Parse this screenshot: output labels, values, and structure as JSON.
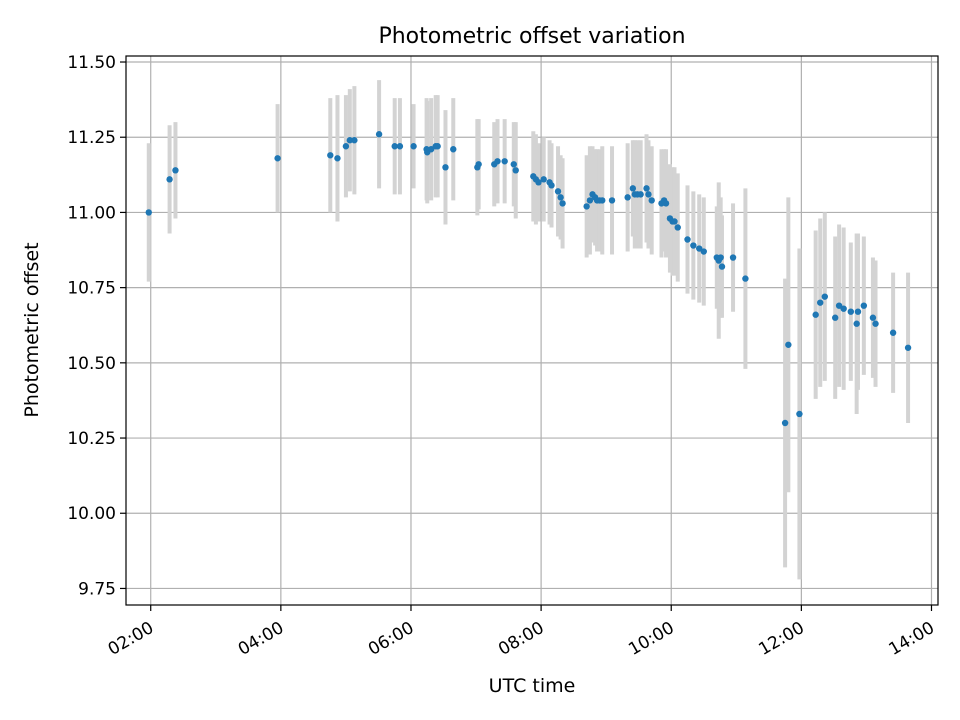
{
  "chart_data": {
    "type": "scatter",
    "title": "Photometric offset variation",
    "xlabel": "UTC time",
    "ylabel": "Photometric offset",
    "xlim": [
      1.62,
      14.1
    ],
    "ylim": [
      9.695,
      11.52
    ],
    "x_ticks": [
      {
        "value": 2,
        "label": "02:00"
      },
      {
        "value": 4,
        "label": "04:00"
      },
      {
        "value": 6,
        "label": "06:00"
      },
      {
        "value": 8,
        "label": "08:00"
      },
      {
        "value": 10,
        "label": "10:00"
      },
      {
        "value": 12,
        "label": "12:00"
      },
      {
        "value": 14,
        "label": "14:00"
      }
    ],
    "y_ticks": [
      {
        "value": 9.75,
        "label": "9.75"
      },
      {
        "value": 10.0,
        "label": "10.00"
      },
      {
        "value": 10.25,
        "label": "10.25"
      },
      {
        "value": 10.5,
        "label": "10.50"
      },
      {
        "value": 10.75,
        "label": "10.75"
      },
      {
        "value": 11.0,
        "label": "11.00"
      },
      {
        "value": 11.25,
        "label": "11.25"
      },
      {
        "value": 11.5,
        "label": "11.50"
      }
    ],
    "grid": true,
    "point_color": "#1f77b4",
    "errorbar_color": "#d3d3d3",
    "points": [
      [
        1.97,
        11.0,
        0.23
      ],
      [
        2.29,
        11.11,
        0.18
      ],
      [
        2.38,
        11.14,
        0.16
      ],
      [
        3.95,
        11.18,
        0.18
      ],
      [
        4.76,
        11.19,
        0.19
      ],
      [
        4.87,
        11.18,
        0.21
      ],
      [
        5.0,
        11.22,
        0.17
      ],
      [
        5.06,
        11.24,
        0.17
      ],
      [
        5.13,
        11.24,
        0.18
      ],
      [
        5.51,
        11.26,
        0.18
      ],
      [
        5.75,
        11.22,
        0.16
      ],
      [
        5.83,
        11.22,
        0.16
      ],
      [
        6.04,
        11.22,
        0.14
      ],
      [
        6.24,
        11.21,
        0.17
      ],
      [
        6.25,
        11.2,
        0.17
      ],
      [
        6.31,
        11.21,
        0.17
      ],
      [
        6.38,
        11.22,
        0.17
      ],
      [
        6.41,
        11.22,
        0.17
      ],
      [
        6.53,
        11.15,
        0.19
      ],
      [
        6.65,
        11.21,
        0.17
      ],
      [
        7.02,
        11.15,
        0.16
      ],
      [
        7.04,
        11.16,
        0.15
      ],
      [
        7.28,
        11.16,
        0.14
      ],
      [
        7.33,
        11.17,
        0.14
      ],
      [
        7.44,
        11.17,
        0.14
      ],
      [
        7.58,
        11.16,
        0.14
      ],
      [
        7.61,
        11.14,
        0.16
      ],
      [
        7.88,
        11.12,
        0.15
      ],
      [
        7.92,
        11.11,
        0.15
      ],
      [
        7.96,
        11.1,
        0.13
      ],
      [
        8.04,
        11.11,
        0.14
      ],
      [
        8.13,
        11.1,
        0.14
      ],
      [
        8.16,
        11.09,
        0.14
      ],
      [
        8.26,
        11.07,
        0.15
      ],
      [
        8.3,
        11.05,
        0.14
      ],
      [
        8.33,
        11.03,
        0.15
      ],
      [
        8.7,
        11.02,
        0.17
      ],
      [
        8.75,
        11.04,
        0.18
      ],
      [
        8.79,
        11.06,
        0.16
      ],
      [
        8.83,
        11.05,
        0.16
      ],
      [
        8.86,
        11.04,
        0.17
      ],
      [
        8.9,
        11.04,
        0.17
      ],
      [
        8.94,
        11.04,
        0.18
      ],
      [
        9.09,
        11.04,
        0.18
      ],
      [
        9.33,
        11.05,
        0.18
      ],
      [
        9.41,
        11.08,
        0.16
      ],
      [
        9.44,
        11.06,
        0.18
      ],
      [
        9.48,
        11.06,
        0.18
      ],
      [
        9.53,
        11.06,
        0.18
      ],
      [
        9.62,
        11.08,
        0.18
      ],
      [
        9.65,
        11.06,
        0.18
      ],
      [
        9.7,
        11.04,
        0.18
      ],
      [
        9.85,
        11.03,
        0.18
      ],
      [
        9.89,
        11.04,
        0.17
      ],
      [
        9.92,
        11.03,
        0.18
      ],
      [
        9.98,
        10.98,
        0.18
      ],
      [
        10.02,
        10.97,
        0.18
      ],
      [
        10.05,
        10.97,
        0.18
      ],
      [
        10.1,
        10.95,
        0.18
      ],
      [
        10.25,
        10.91,
        0.18
      ],
      [
        10.34,
        10.89,
        0.18
      ],
      [
        10.43,
        10.88,
        0.18
      ],
      [
        10.5,
        10.87,
        0.18
      ],
      [
        10.7,
        10.85,
        0.17
      ],
      [
        10.73,
        10.84,
        0.26
      ],
      [
        10.76,
        10.85,
        0.2
      ],
      [
        10.78,
        10.82,
        0.17
      ],
      [
        10.95,
        10.85,
        0.18
      ],
      [
        11.14,
        10.78,
        0.3
      ],
      [
        11.75,
        10.3,
        0.48
      ],
      [
        11.8,
        10.56,
        0.49
      ],
      [
        11.97,
        10.33,
        0.55
      ],
      [
        12.22,
        10.66,
        0.28
      ],
      [
        12.29,
        10.7,
        0.28
      ],
      [
        12.36,
        10.72,
        0.28
      ],
      [
        12.52,
        10.65,
        0.27
      ],
      [
        12.58,
        10.69,
        0.27
      ],
      [
        12.65,
        10.68,
        0.27
      ],
      [
        12.76,
        10.67,
        0.23
      ],
      [
        12.85,
        10.63,
        0.3
      ],
      [
        12.87,
        10.67,
        0.26
      ],
      [
        12.96,
        10.69,
        0.23
      ],
      [
        13.1,
        10.65,
        0.2
      ],
      [
        13.14,
        10.63,
        0.21
      ],
      [
        13.41,
        10.6,
        0.2
      ],
      [
        13.64,
        10.55,
        0.25
      ]
    ]
  }
}
